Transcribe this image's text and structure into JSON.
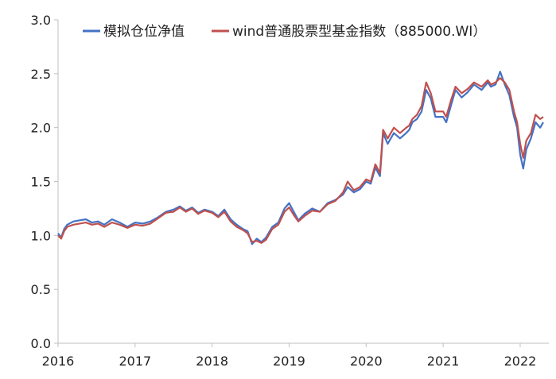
{
  "chart_data": {
    "type": "line",
    "title": "",
    "xlabel": "",
    "ylabel": "",
    "ylim": [
      0,
      3.0
    ],
    "y_ticks": [
      "0.0",
      "0.5",
      "1.0",
      "1.5",
      "2.0",
      "2.5",
      "3.0"
    ],
    "x_ticks": [
      "2016",
      "2017",
      "2018",
      "2019",
      "2020",
      "2021",
      "2022"
    ],
    "xlim": [
      2016.0,
      2022.3
    ],
    "grid": false,
    "legend_position": "top",
    "series": [
      {
        "name": "模拟仓位净值",
        "color": "#4472C4",
        "x": [
          2016.0,
          2016.04,
          2016.08,
          2016.12,
          2016.2,
          2016.28,
          2016.36,
          2016.44,
          2016.52,
          2016.6,
          2016.7,
          2016.8,
          2016.9,
          2017.0,
          2017.1,
          2017.2,
          2017.3,
          2017.4,
          2017.5,
          2017.58,
          2017.66,
          2017.74,
          2017.82,
          2017.9,
          2018.0,
          2018.08,
          2018.16,
          2018.24,
          2018.32,
          2018.4,
          2018.46,
          2018.52,
          2018.58,
          2018.64,
          2018.7,
          2018.78,
          2018.86,
          2018.94,
          2019.0,
          2019.06,
          2019.12,
          2019.2,
          2019.3,
          2019.4,
          2019.5,
          2019.6,
          2019.7,
          2019.76,
          2019.84,
          2019.92,
          2020.0,
          2020.06,
          2020.12,
          2020.18,
          2020.22,
          2020.28,
          2020.36,
          2020.44,
          2020.52,
          2020.56,
          2020.6,
          2020.66,
          2020.72,
          2020.78,
          2020.84,
          2020.9,
          2021.0,
          2021.04,
          2021.1,
          2021.16,
          2021.24,
          2021.32,
          2021.4,
          2021.5,
          2021.58,
          2021.62,
          2021.68,
          2021.74,
          2021.8,
          2021.86,
          2021.92,
          2021.96,
          2022.0,
          2022.04,
          2022.08,
          2022.14,
          2022.2,
          2022.26,
          2022.3
        ],
        "values": [
          1.02,
          0.98,
          1.06,
          1.1,
          1.13,
          1.14,
          1.15,
          1.12,
          1.13,
          1.1,
          1.15,
          1.12,
          1.08,
          1.12,
          1.11,
          1.13,
          1.17,
          1.22,
          1.24,
          1.27,
          1.23,
          1.26,
          1.21,
          1.24,
          1.22,
          1.18,
          1.24,
          1.15,
          1.1,
          1.06,
          1.04,
          0.92,
          0.97,
          0.94,
          0.98,
          1.08,
          1.12,
          1.25,
          1.3,
          1.22,
          1.14,
          1.2,
          1.25,
          1.22,
          1.3,
          1.33,
          1.38,
          1.45,
          1.4,
          1.43,
          1.5,
          1.48,
          1.63,
          1.55,
          1.95,
          1.85,
          1.95,
          1.9,
          1.95,
          1.98,
          2.05,
          2.08,
          2.15,
          2.35,
          2.27,
          2.1,
          2.1,
          2.05,
          2.2,
          2.35,
          2.28,
          2.33,
          2.4,
          2.35,
          2.42,
          2.38,
          2.4,
          2.52,
          2.4,
          2.3,
          2.1,
          2.0,
          1.75,
          1.62,
          1.8,
          1.9,
          2.05,
          2.0,
          2.05
        ]
      },
      {
        "name": "wind普通股票型基金指数（885000.WI）",
        "color": "#C0504D",
        "x": [
          2016.0,
          2016.04,
          2016.08,
          2016.12,
          2016.2,
          2016.28,
          2016.36,
          2016.44,
          2016.52,
          2016.6,
          2016.7,
          2016.8,
          2016.9,
          2017.0,
          2017.1,
          2017.2,
          2017.3,
          2017.4,
          2017.5,
          2017.58,
          2017.66,
          2017.74,
          2017.82,
          2017.9,
          2018.0,
          2018.08,
          2018.16,
          2018.24,
          2018.32,
          2018.4,
          2018.46,
          2018.52,
          2018.58,
          2018.64,
          2018.7,
          2018.78,
          2018.86,
          2018.94,
          2019.0,
          2019.06,
          2019.12,
          2019.2,
          2019.3,
          2019.4,
          2019.5,
          2019.6,
          2019.7,
          2019.76,
          2019.84,
          2019.92,
          2020.0,
          2020.06,
          2020.12,
          2020.18,
          2020.22,
          2020.28,
          2020.36,
          2020.44,
          2020.52,
          2020.56,
          2020.6,
          2020.66,
          2020.72,
          2020.78,
          2020.84,
          2020.9,
          2021.0,
          2021.04,
          2021.1,
          2021.16,
          2021.24,
          2021.32,
          2021.4,
          2021.5,
          2021.58,
          2021.62,
          2021.68,
          2021.74,
          2021.8,
          2021.86,
          2021.92,
          2021.96,
          2022.0,
          2022.04,
          2022.08,
          2022.14,
          2022.2,
          2022.26,
          2022.3
        ],
        "values": [
          1.0,
          0.97,
          1.04,
          1.08,
          1.1,
          1.11,
          1.12,
          1.1,
          1.11,
          1.08,
          1.12,
          1.1,
          1.07,
          1.1,
          1.09,
          1.11,
          1.16,
          1.21,
          1.22,
          1.26,
          1.22,
          1.25,
          1.2,
          1.23,
          1.21,
          1.17,
          1.22,
          1.13,
          1.08,
          1.05,
          1.02,
          0.94,
          0.95,
          0.93,
          0.96,
          1.06,
          1.1,
          1.22,
          1.26,
          1.19,
          1.13,
          1.18,
          1.23,
          1.22,
          1.29,
          1.32,
          1.4,
          1.5,
          1.42,
          1.45,
          1.52,
          1.5,
          1.66,
          1.58,
          1.98,
          1.9,
          2.0,
          1.95,
          2.0,
          2.02,
          2.08,
          2.12,
          2.2,
          2.42,
          2.32,
          2.15,
          2.15,
          2.1,
          2.25,
          2.38,
          2.32,
          2.36,
          2.42,
          2.38,
          2.44,
          2.4,
          2.42,
          2.46,
          2.42,
          2.35,
          2.15,
          2.05,
          1.85,
          1.72,
          1.88,
          1.95,
          2.12,
          2.08,
          2.1
        ]
      }
    ]
  }
}
